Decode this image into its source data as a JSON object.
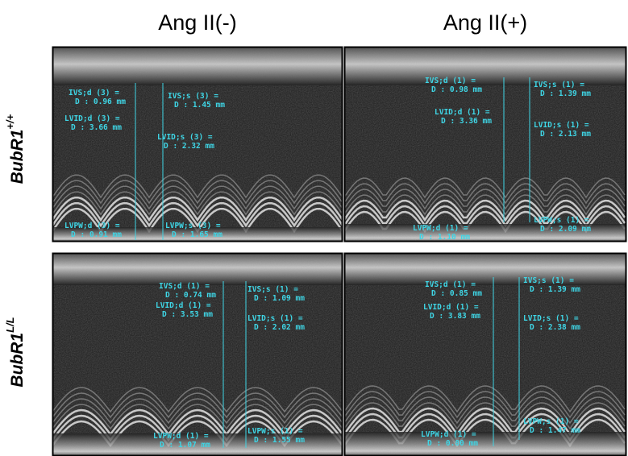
{
  "columns": [
    "Ang II(-)",
    "Ang II(+)"
  ],
  "rows": [
    {
      "label": "BubR1",
      "superscript": "+/+"
    },
    {
      "label": "BubR1",
      "superscript": "L/L"
    }
  ],
  "panels": [
    {
      "annotations": [
        {
          "label": "IVS;d (3) =",
          "value": "D : 0.96 mm"
        },
        {
          "label": "LVID;d (3) =",
          "value": "D : 3.66 mm"
        },
        {
          "label": "IVS;s (3) =",
          "value": "D : 1.45 mm"
        },
        {
          "label": "LVID;s (3) =",
          "value": "D : 2.32 mm"
        },
        {
          "label": "LVPW;d (3) =",
          "value": "D : 0.91 mm"
        },
        {
          "label": "LVPW;s (3) =",
          "value": "D : 1.65 mm"
        }
      ]
    },
    {
      "annotations": [
        {
          "label": "IVS;d (1) =",
          "value": "D : 0.98 mm"
        },
        {
          "label": "LVID;d (1) =",
          "value": "D : 3.36 mm"
        },
        {
          "label": "IVS;s (1) =",
          "value": "D : 1.39 mm"
        },
        {
          "label": "LVID;s (1) =",
          "value": "D : 2.13 mm"
        },
        {
          "label": "LVPW;d (1) =",
          "value": "D : 1.10 mm"
        },
        {
          "label": "LVPW;s (1) =",
          "value": "D : 2.09 mm"
        }
      ]
    },
    {
      "annotations": [
        {
          "label": "IVS;d (1) =",
          "value": "D : 0.74 mm"
        },
        {
          "label": "LVID;d (1) =",
          "value": "D : 3.53 mm"
        },
        {
          "label": "IVS;s (1) =",
          "value": "D : 1.09 mm"
        },
        {
          "label": "LVID;s (1) =",
          "value": "D : 2.02 mm"
        },
        {
          "label": "LVPW;d (1) =",
          "value": "D : 1.07 mm"
        },
        {
          "label": "LVPW;s (1) =",
          "value": "D : 1.55 mm"
        }
      ]
    },
    {
      "annotations": [
        {
          "label": "IVS;d (1) =",
          "value": "D : 0.85 mm"
        },
        {
          "label": "LVID;d (1) =",
          "value": "D : 3.83 mm"
        },
        {
          "label": "IVS;s (1) =",
          "value": "D : 1.39 mm"
        },
        {
          "label": "LVID;s (1) =",
          "value": "D : 2.38 mm"
        },
        {
          "label": "LVPW;d (1) =",
          "value": "D : 0.80 mm"
        },
        {
          "label": "LVPW;s (1) =",
          "value": "D : 1.47 mm"
        }
      ]
    }
  ]
}
